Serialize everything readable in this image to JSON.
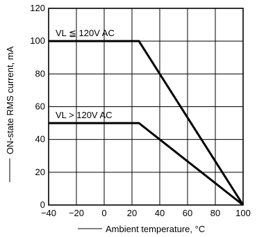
{
  "chart_data": {
    "type": "line",
    "xlabel": "Ambient temperature, °C",
    "ylabel": "ON-state RMS current, mA",
    "xlim": [
      -40,
      100
    ],
    "ylim": [
      0,
      120
    ],
    "xticks": [
      "−40",
      "−20",
      "0",
      "20",
      "40",
      "60",
      "80",
      "100"
    ],
    "yticks": [
      "0",
      "20",
      "40",
      "60",
      "80",
      "100",
      "120"
    ],
    "grid": true,
    "series": [
      {
        "name": "VL ≦ 120V AC",
        "x": [
          -40,
          25,
          100
        ],
        "y": [
          100,
          100,
          0
        ]
      },
      {
        "name": "VL > 120V AC",
        "x": [
          -40,
          25,
          100
        ],
        "y": [
          50,
          50,
          0
        ]
      }
    ],
    "colors": {
      "line": "#000000",
      "grid": "#000000"
    }
  }
}
